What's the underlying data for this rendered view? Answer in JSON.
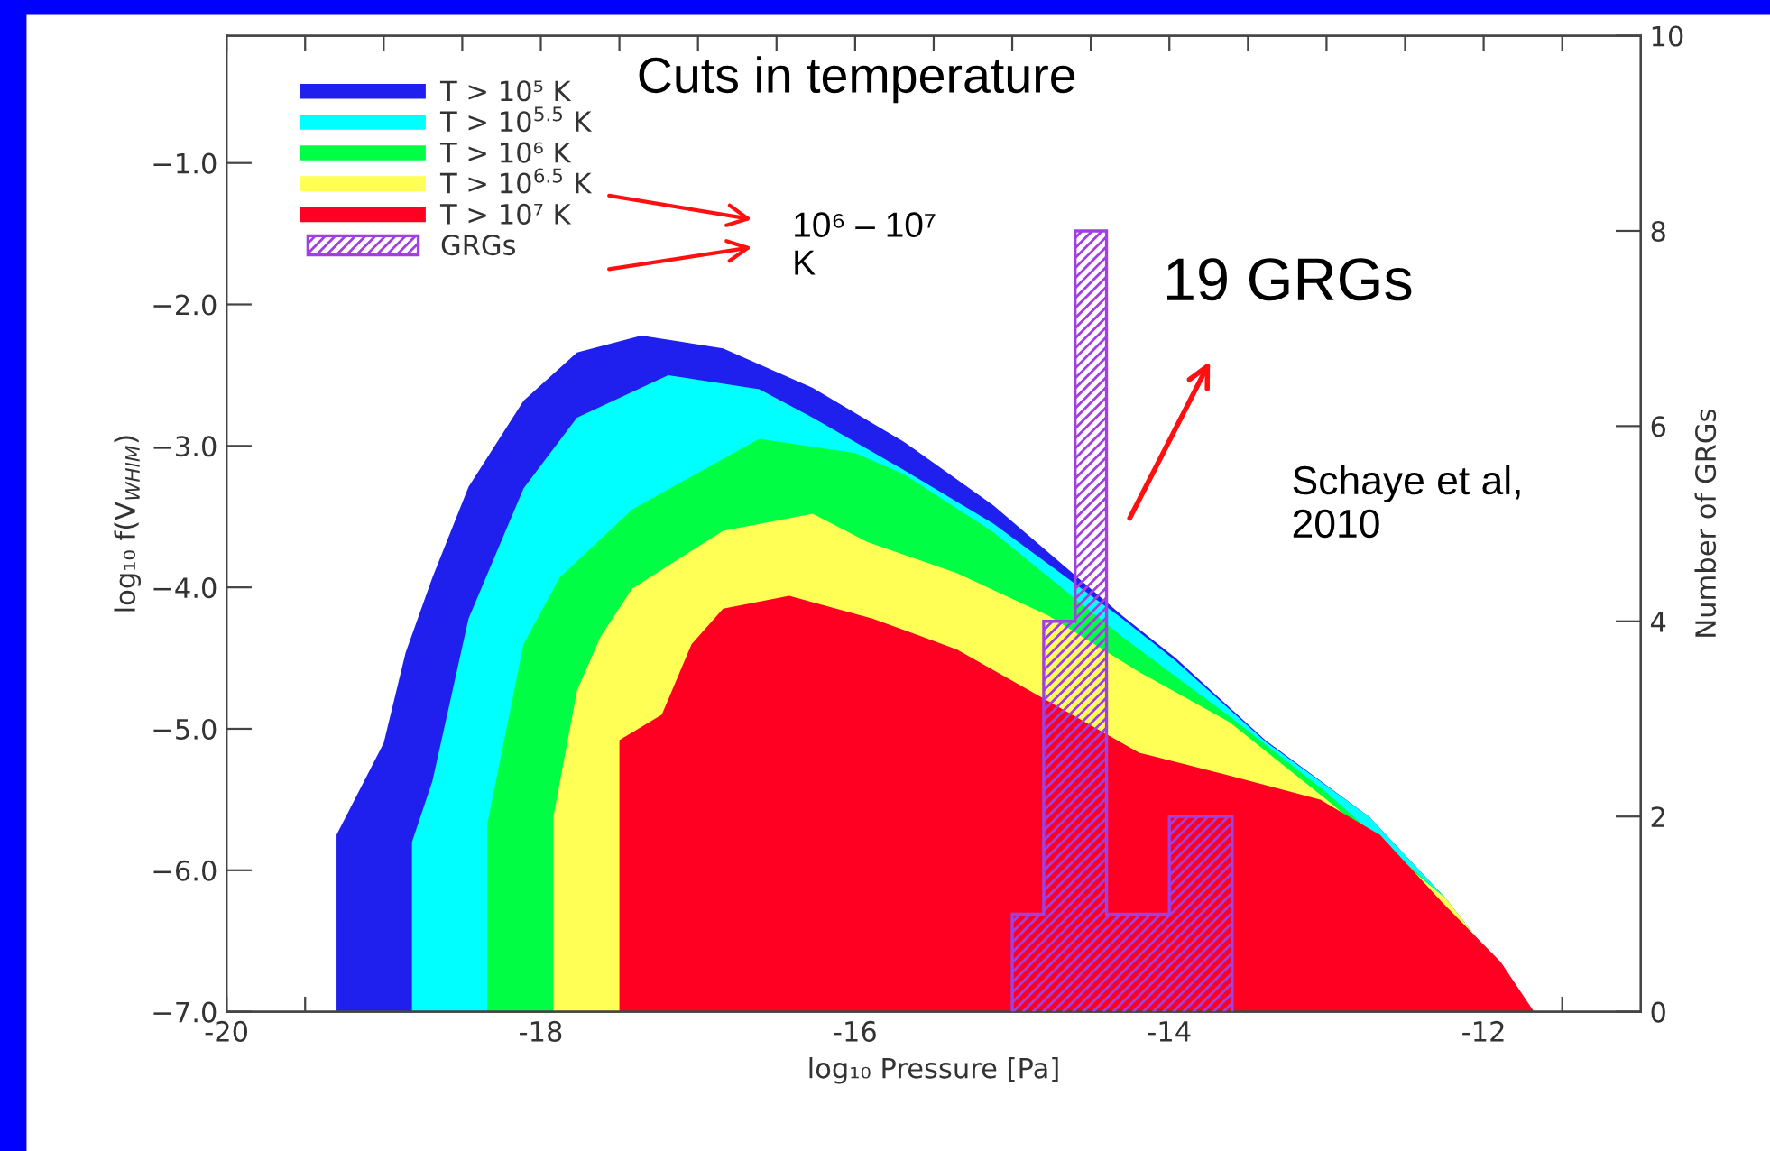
{
  "chart_data": {
    "type": "area",
    "xlabel": "log₁₀ Pressure [Pa]",
    "ylabel": "log₁₀ f(V$_{WHIM}$)",
    "y2label": "Number of GRGs",
    "xlim": [
      -20,
      -11
    ],
    "xticks": [
      -20,
      {
        "value": -19.5,
        "label": null
      },
      {
        "value": -19,
        "label": null
      },
      {
        "value": -18.5,
        "label": null
      },
      -18,
      {
        "value": -17.5,
        "label": null
      },
      {
        "value": -17,
        "label": null
      },
      {
        "value": -16.5,
        "label": null
      },
      -16,
      {
        "value": -15.5,
        "label": null
      },
      {
        "value": -15,
        "label": null
      },
      {
        "value": -14.5,
        "label": null
      },
      -14,
      {
        "value": -13.5,
        "label": null
      },
      {
        "value": -13,
        "label": null
      },
      {
        "value": -12.5,
        "label": null
      },
      -12,
      {
        "value": -11.5,
        "label": null
      }
    ],
    "ylim": [
      -7,
      -0.1
    ],
    "yticks": [
      {
        "value": -7,
        "label": "−7.0"
      },
      {
        "value": -6,
        "label": "−6.0"
      },
      {
        "value": -5,
        "label": "−5.0"
      },
      {
        "value": -4,
        "label": "−4.0"
      },
      {
        "value": -3,
        "label": "−3.0"
      },
      {
        "value": -2,
        "label": "−2.0"
      },
      {
        "value": -1,
        "label": "−1.0"
      }
    ],
    "y2lim": [
      0,
      10
    ],
    "y2ticks": [
      0,
      2,
      4,
      6,
      8,
      10
    ],
    "legend": "top left",
    "grid": false,
    "series": [
      {
        "name": "T > 10⁵ K",
        "color": "#2020ee",
        "x": [
          -19.3,
          -19.3,
          -19.0,
          -18.86,
          -18.69,
          -18.46,
          -18.11,
          -17.77,
          -17.36,
          -16.84,
          -16.27,
          -15.69,
          -15.12,
          -14.3,
          -13.96,
          -13.39,
          -12.73,
          -12.24,
          -11.68
        ],
        "values": [
          -7,
          -5.75,
          -5.1,
          -4.46,
          -3.93,
          -3.29,
          -2.68,
          -2.34,
          -2.22,
          -2.31,
          -2.59,
          -2.97,
          -3.42,
          -4.2,
          -4.5,
          -5.08,
          -5.62,
          -6.2,
          -7
        ]
      },
      {
        "name": "T > 10$^{5.5}$ K",
        "color": "#00ffff",
        "x": [
          -18.82,
          -18.82,
          -18.69,
          -18.46,
          -18.11,
          -17.77,
          -17.19,
          -16.61,
          -16.27,
          -15.69,
          -15.12,
          -14.3,
          -13.96,
          -13.39,
          -12.73,
          -12.24,
          -11.68
        ],
        "values": [
          -7,
          -5.8,
          -5.37,
          -4.22,
          -3.3,
          -2.8,
          -2.5,
          -2.6,
          -2.8,
          -3.17,
          -3.55,
          -4.22,
          -4.52,
          -5.09,
          -5.62,
          -6.2,
          -7
        ]
      },
      {
        "name": "T > 10⁶ K",
        "color": "#00ff44",
        "x": [
          -18.34,
          -18.34,
          -18.11,
          -17.88,
          -17.42,
          -16.61,
          -16.0,
          -15.69,
          -15.12,
          -14.3,
          -13.62,
          -13.0,
          -12.24,
          -11.68
        ],
        "values": [
          -7,
          -5.67,
          -4.4,
          -3.93,
          -3.45,
          -2.95,
          -3.05,
          -3.2,
          -3.61,
          -4.35,
          -4.91,
          -5.45,
          -6.2,
          -7
        ]
      },
      {
        "name": "T > 10$^{6.5}$ K",
        "color": "#ffff55",
        "x": [
          -17.92,
          -17.92,
          -17.77,
          -17.62,
          -17.42,
          -16.84,
          -16.27,
          -15.92,
          -15.35,
          -14.77,
          -14.19,
          -13.62,
          -13.0,
          -12.24,
          -11.68
        ],
        "values": [
          -7,
          -5.62,
          -4.73,
          -4.35,
          -4.01,
          -3.6,
          -3.48,
          -3.68,
          -3.9,
          -4.2,
          -4.6,
          -4.95,
          -5.5,
          -6.2,
          -7
        ]
      },
      {
        "name": "T > 10⁷ K",
        "color": "#ff0022",
        "x": [
          -17.5,
          -17.5,
          -17.23,
          -17.04,
          -16.84,
          -16.42,
          -15.89,
          -15.35,
          -14.19,
          -13.62,
          -13.04,
          -12.66,
          -12.27,
          -11.89,
          -11.68
        ],
        "values": [
          -7,
          -5.08,
          -4.9,
          -4.4,
          -4.15,
          -4.06,
          -4.22,
          -4.44,
          -5.17,
          -5.33,
          -5.5,
          -5.75,
          -6.22,
          -6.65,
          -7
        ]
      },
      {
        "name": "GRGs",
        "type": "histogram",
        "axis": "y2",
        "color": "#a040e0",
        "bins": [
          -15.0,
          -14.8,
          -14.6,
          -14.4,
          -14.2,
          -14.0,
          -13.8,
          -13.6
        ],
        "values": [
          1,
          4,
          8,
          1,
          1,
          2,
          2
        ]
      }
    ],
    "annotations": [
      "Cuts in temperature",
      "10⁶ – 10⁷\nK",
      "19 GRGs",
      "Schaye et al,\n2010"
    ]
  }
}
